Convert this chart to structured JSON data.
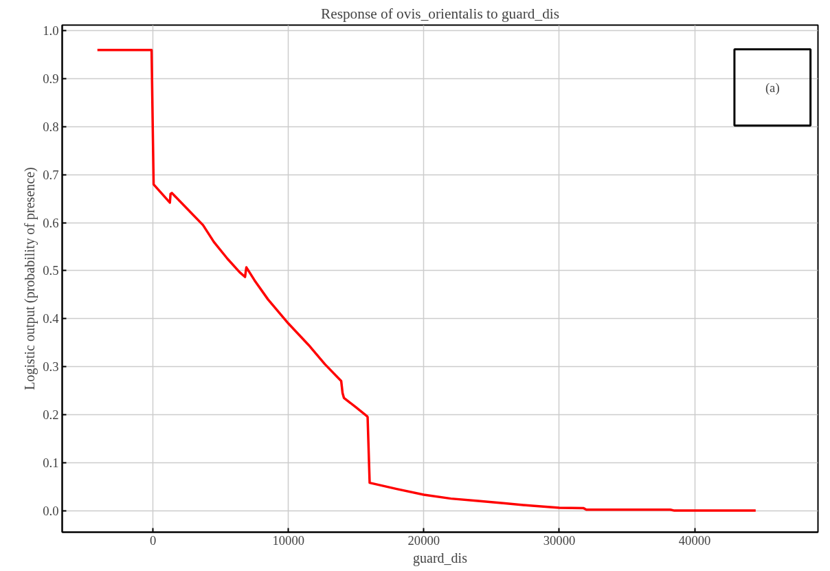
{
  "chart_data": {
    "type": "line",
    "title": "Response of ovis_orientalis to guard_dis",
    "xlabel": "guard_dis",
    "ylabel": "Logistic output (probability of presence)",
    "annotations": [
      "(a)"
    ],
    "series": [
      {
        "color": "#ff0000",
        "x": [
          -4100,
          -100,
          50,
          1250,
          1300,
          1400,
          2500,
          3700,
          4500,
          5500,
          6400,
          6800,
          6900,
          7500,
          8500,
          10000,
          11500,
          12700,
          13900,
          14000,
          14100,
          15000,
          15800,
          15850,
          16000,
          18000,
          20000,
          22000,
          24000,
          26000,
          28000,
          30000,
          31800,
          32000,
          38200,
          38500,
          44500
        ],
        "values": [
          0.96,
          0.96,
          0.68,
          0.642,
          0.66,
          0.662,
          0.63,
          0.595,
          0.56,
          0.525,
          0.497,
          0.487,
          0.507,
          0.48,
          0.44,
          0.39,
          0.345,
          0.305,
          0.27,
          0.245,
          0.235,
          0.215,
          0.197,
          0.195,
          0.058,
          0.045,
          0.033,
          0.025,
          0.02,
          0.015,
          0.01,
          0.006,
          0.005,
          0.002,
          0.002,
          0.0,
          0.0
        ]
      }
    ],
    "xlim": [
      -6700,
      49100
    ],
    "ylim": [
      -0.045,
      1.012
    ],
    "xticks": [
      0,
      10000,
      20000,
      30000,
      40000
    ],
    "yticks": [
      {
        "value": 0,
        "label": "0.0"
      },
      0.1,
      0.2,
      0.3,
      0.4,
      0.5,
      0.6,
      0.7,
      0.8,
      0.9,
      {
        "value": 1,
        "label": "1.0"
      }
    ],
    "grid": true,
    "marker": "none",
    "line_style": "solid"
  }
}
